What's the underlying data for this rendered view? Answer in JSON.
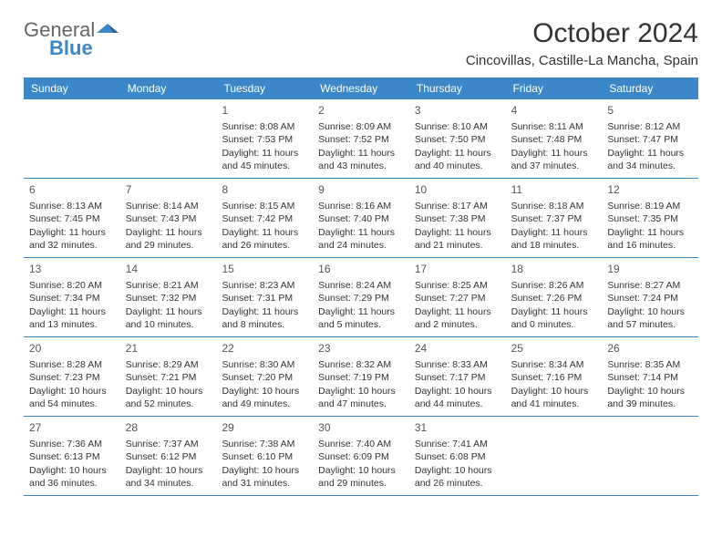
{
  "logo": {
    "word1": "General",
    "word2": "Blue"
  },
  "title": "October 2024",
  "location": "Cincovillas, Castille-La Mancha, Spain",
  "colors": {
    "header_bg": "#3c87c7",
    "header_text": "#ffffff",
    "divider": "#3c87c7",
    "text": "#333333",
    "page_bg": "#ffffff"
  },
  "day_headers": [
    "Sunday",
    "Monday",
    "Tuesday",
    "Wednesday",
    "Thursday",
    "Friday",
    "Saturday"
  ],
  "weeks": [
    [
      null,
      null,
      {
        "day": "1",
        "sunrise": "Sunrise: 8:08 AM",
        "sunset": "Sunset: 7:53 PM",
        "daylight": "Daylight: 11 hours and 45 minutes."
      },
      {
        "day": "2",
        "sunrise": "Sunrise: 8:09 AM",
        "sunset": "Sunset: 7:52 PM",
        "daylight": "Daylight: 11 hours and 43 minutes."
      },
      {
        "day": "3",
        "sunrise": "Sunrise: 8:10 AM",
        "sunset": "Sunset: 7:50 PM",
        "daylight": "Daylight: 11 hours and 40 minutes."
      },
      {
        "day": "4",
        "sunrise": "Sunrise: 8:11 AM",
        "sunset": "Sunset: 7:48 PM",
        "daylight": "Daylight: 11 hours and 37 minutes."
      },
      {
        "day": "5",
        "sunrise": "Sunrise: 8:12 AM",
        "sunset": "Sunset: 7:47 PM",
        "daylight": "Daylight: 11 hours and 34 minutes."
      }
    ],
    [
      {
        "day": "6",
        "sunrise": "Sunrise: 8:13 AM",
        "sunset": "Sunset: 7:45 PM",
        "daylight": "Daylight: 11 hours and 32 minutes."
      },
      {
        "day": "7",
        "sunrise": "Sunrise: 8:14 AM",
        "sunset": "Sunset: 7:43 PM",
        "daylight": "Daylight: 11 hours and 29 minutes."
      },
      {
        "day": "8",
        "sunrise": "Sunrise: 8:15 AM",
        "sunset": "Sunset: 7:42 PM",
        "daylight": "Daylight: 11 hours and 26 minutes."
      },
      {
        "day": "9",
        "sunrise": "Sunrise: 8:16 AM",
        "sunset": "Sunset: 7:40 PM",
        "daylight": "Daylight: 11 hours and 24 minutes."
      },
      {
        "day": "10",
        "sunrise": "Sunrise: 8:17 AM",
        "sunset": "Sunset: 7:38 PM",
        "daylight": "Daylight: 11 hours and 21 minutes."
      },
      {
        "day": "11",
        "sunrise": "Sunrise: 8:18 AM",
        "sunset": "Sunset: 7:37 PM",
        "daylight": "Daylight: 11 hours and 18 minutes."
      },
      {
        "day": "12",
        "sunrise": "Sunrise: 8:19 AM",
        "sunset": "Sunset: 7:35 PM",
        "daylight": "Daylight: 11 hours and 16 minutes."
      }
    ],
    [
      {
        "day": "13",
        "sunrise": "Sunrise: 8:20 AM",
        "sunset": "Sunset: 7:34 PM",
        "daylight": "Daylight: 11 hours and 13 minutes."
      },
      {
        "day": "14",
        "sunrise": "Sunrise: 8:21 AM",
        "sunset": "Sunset: 7:32 PM",
        "daylight": "Daylight: 11 hours and 10 minutes."
      },
      {
        "day": "15",
        "sunrise": "Sunrise: 8:23 AM",
        "sunset": "Sunset: 7:31 PM",
        "daylight": "Daylight: 11 hours and 8 minutes."
      },
      {
        "day": "16",
        "sunrise": "Sunrise: 8:24 AM",
        "sunset": "Sunset: 7:29 PM",
        "daylight": "Daylight: 11 hours and 5 minutes."
      },
      {
        "day": "17",
        "sunrise": "Sunrise: 8:25 AM",
        "sunset": "Sunset: 7:27 PM",
        "daylight": "Daylight: 11 hours and 2 minutes."
      },
      {
        "day": "18",
        "sunrise": "Sunrise: 8:26 AM",
        "sunset": "Sunset: 7:26 PM",
        "daylight": "Daylight: 11 hours and 0 minutes."
      },
      {
        "day": "19",
        "sunrise": "Sunrise: 8:27 AM",
        "sunset": "Sunset: 7:24 PM",
        "daylight": "Daylight: 10 hours and 57 minutes."
      }
    ],
    [
      {
        "day": "20",
        "sunrise": "Sunrise: 8:28 AM",
        "sunset": "Sunset: 7:23 PM",
        "daylight": "Daylight: 10 hours and 54 minutes."
      },
      {
        "day": "21",
        "sunrise": "Sunrise: 8:29 AM",
        "sunset": "Sunset: 7:21 PM",
        "daylight": "Daylight: 10 hours and 52 minutes."
      },
      {
        "day": "22",
        "sunrise": "Sunrise: 8:30 AM",
        "sunset": "Sunset: 7:20 PM",
        "daylight": "Daylight: 10 hours and 49 minutes."
      },
      {
        "day": "23",
        "sunrise": "Sunrise: 8:32 AM",
        "sunset": "Sunset: 7:19 PM",
        "daylight": "Daylight: 10 hours and 47 minutes."
      },
      {
        "day": "24",
        "sunrise": "Sunrise: 8:33 AM",
        "sunset": "Sunset: 7:17 PM",
        "daylight": "Daylight: 10 hours and 44 minutes."
      },
      {
        "day": "25",
        "sunrise": "Sunrise: 8:34 AM",
        "sunset": "Sunset: 7:16 PM",
        "daylight": "Daylight: 10 hours and 41 minutes."
      },
      {
        "day": "26",
        "sunrise": "Sunrise: 8:35 AM",
        "sunset": "Sunset: 7:14 PM",
        "daylight": "Daylight: 10 hours and 39 minutes."
      }
    ],
    [
      {
        "day": "27",
        "sunrise": "Sunrise: 7:36 AM",
        "sunset": "Sunset: 6:13 PM",
        "daylight": "Daylight: 10 hours and 36 minutes."
      },
      {
        "day": "28",
        "sunrise": "Sunrise: 7:37 AM",
        "sunset": "Sunset: 6:12 PM",
        "daylight": "Daylight: 10 hours and 34 minutes."
      },
      {
        "day": "29",
        "sunrise": "Sunrise: 7:38 AM",
        "sunset": "Sunset: 6:10 PM",
        "daylight": "Daylight: 10 hours and 31 minutes."
      },
      {
        "day": "30",
        "sunrise": "Sunrise: 7:40 AM",
        "sunset": "Sunset: 6:09 PM",
        "daylight": "Daylight: 10 hours and 29 minutes."
      },
      {
        "day": "31",
        "sunrise": "Sunrise: 7:41 AM",
        "sunset": "Sunset: 6:08 PM",
        "daylight": "Daylight: 10 hours and 26 minutes."
      },
      null,
      null
    ]
  ]
}
